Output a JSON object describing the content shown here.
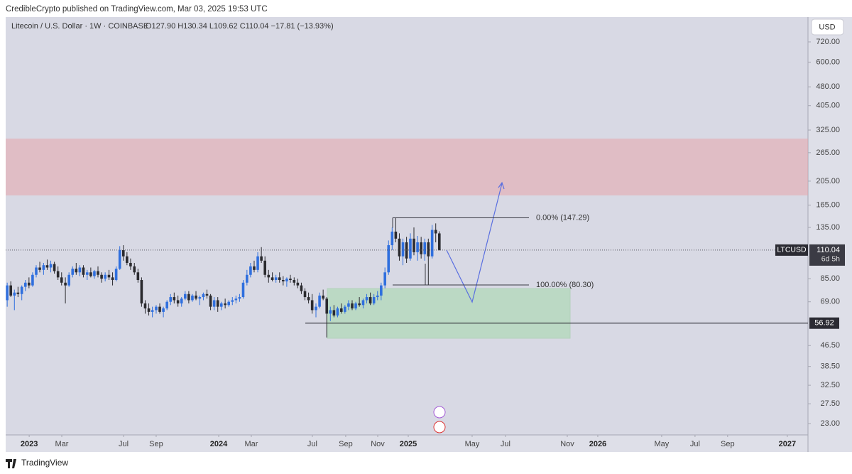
{
  "header": "CredibleCrypto published on TradingView.com, Mar 03, 2025 19:53 UTC",
  "footer": "TradingView",
  "chart_data": {
    "type": "candlestick",
    "title": "Litecoin / U.S. Dollar · 1W · COINBASE",
    "legend_values": "O127.90 H130.34 L109.62 C110.04 −17.81 (−13.93%)",
    "currency": "USD",
    "symbol": "LTCUSD",
    "countdown": "6d 5h",
    "log_scale": true,
    "up_color": "#2f6fde",
    "down_color": "#2a2a2e",
    "xlim": [
      2022.876,
      2027.109
    ],
    "ylim": [
      20.76,
      901
    ],
    "xticks": [
      2023,
      {
        "value": 2023.172,
        "label": "Mar"
      },
      {
        "value": 2023.498,
        "label": "Jul"
      },
      {
        "value": 2023.67,
        "label": "Sep"
      },
      2024,
      {
        "value": 2024.172,
        "label": "Mar"
      },
      {
        "value": 2024.494,
        "label": "Jul"
      },
      {
        "value": 2024.67,
        "label": "Sep"
      },
      {
        "value": 2024.839,
        "label": "Nov"
      },
      2025,
      {
        "value": 2025.337,
        "label": "May"
      },
      {
        "value": 2025.513,
        "label": "Jul"
      },
      {
        "value": 2025.839,
        "label": "Nov"
      },
      2026,
      {
        "value": 2026.337,
        "label": "May"
      },
      {
        "value": 2026.513,
        "label": "Jul"
      },
      {
        "value": 2026.685,
        "label": "Sep"
      },
      2027
    ],
    "yticks": [
      {
        "value": 720,
        "label": "720.00"
      },
      {
        "value": 600,
        "label": "600.00"
      },
      {
        "value": 480,
        "label": "480.00"
      },
      {
        "value": 405,
        "label": "405.00"
      },
      {
        "value": 325,
        "label": "325.00"
      },
      {
        "value": 265,
        "label": "265.00"
      },
      {
        "value": 205,
        "label": "205.00"
      },
      {
        "value": 165,
        "label": "165.00"
      },
      {
        "value": 135,
        "label": "135.00"
      },
      {
        "value": 85,
        "label": "85.00"
      },
      {
        "value": 69,
        "label": "69.00"
      },
      {
        "value": 46.5,
        "label": "46.50"
      },
      {
        "value": 38.5,
        "label": "38.50"
      },
      {
        "value": 32.5,
        "label": "32.50"
      },
      {
        "value": 27.5,
        "label": "27.50"
      },
      {
        "value": 23,
        "label": "23.00"
      }
    ],
    "fib_levels": [
      {
        "value": 147.29,
        "label": "0.00% (147.29)"
      },
      {
        "value": 80.3,
        "label": "100.00% (80.30)"
      }
    ],
    "hline": 56.92,
    "x": [
      2022.884,
      2022.903,
      2022.922,
      2022.941,
      2022.961,
      2022.98,
      2022.999,
      2023.018,
      2023.037,
      2023.056,
      2023.076,
      2023.095,
      2023.114,
      2023.133,
      2023.152,
      2023.171,
      2023.191,
      2023.21,
      2023.229,
      2023.248,
      2023.267,
      2023.286,
      2023.306,
      2023.325,
      2023.344,
      2023.363,
      2023.382,
      2023.401,
      2023.421,
      2023.44,
      2023.459,
      2023.478,
      2023.497,
      2023.516,
      2023.535,
      2023.555,
      2023.574,
      2023.593,
      2023.612,
      2023.631,
      2023.65,
      2023.67,
      2023.689,
      2023.708,
      2023.727,
      2023.746,
      2023.765,
      2023.785,
      2023.804,
      2023.823,
      2023.842,
      2023.861,
      2023.88,
      2023.9,
      2023.919,
      2023.938,
      2023.957,
      2023.976,
      2023.995,
      2024.014,
      2024.034,
      2024.053,
      2024.072,
      2024.091,
      2024.11,
      2024.129,
      2024.149,
      2024.168,
      2024.187,
      2024.206,
      2024.225,
      2024.244,
      2024.263,
      2024.283,
      2024.302,
      2024.321,
      2024.34,
      2024.359,
      2024.378,
      2024.398,
      2024.417,
      2024.436,
      2024.455,
      2024.474,
      2024.493,
      2024.513,
      2024.532,
      2024.551,
      2024.57,
      2024.589,
      2024.608,
      2024.627,
      2024.647,
      2024.666,
      2024.685,
      2024.704,
      2024.723,
      2024.742,
      2024.762,
      2024.781,
      2024.8,
      2024.819,
      2024.838,
      2024.857,
      2024.877,
      2024.896,
      2024.915,
      2024.934,
      2024.953,
      2024.972,
      2024.991,
      2025.011,
      2025.03,
      2025.049,
      2025.068,
      2025.087,
      2025.106,
      2025.126,
      2025.145,
      2025.164
    ],
    "open": [
      70,
      80,
      73,
      75,
      74,
      79,
      82,
      80,
      88,
      94,
      92,
      96,
      94,
      97,
      91,
      86,
      82,
      80,
      88,
      93,
      90,
      94,
      88,
      90,
      87,
      91,
      88,
      85,
      88,
      86,
      84,
      93,
      110,
      104,
      98,
      95,
      90,
      84,
      68,
      65,
      63,
      64,
      66,
      63,
      65,
      69,
      72,
      70,
      68,
      71,
      74,
      70,
      73,
      71,
      72,
      74,
      73,
      66,
      70,
      66,
      68,
      67,
      69,
      70,
      71,
      72,
      82,
      88,
      95,
      92,
      104,
      100,
      88,
      86,
      84,
      86,
      84,
      83,
      85,
      84,
      82,
      80,
      76,
      72,
      70,
      64,
      66,
      73,
      71,
      62,
      64,
      61,
      65,
      63,
      66,
      68,
      65,
      68,
      67,
      70,
      72,
      68,
      72,
      73,
      80,
      90,
      115,
      130,
      122,
      104,
      118,
      102,
      122,
      108,
      118,
      106,
      118,
      104,
      132,
      127.9
    ],
    "high": [
      82,
      83,
      77,
      79,
      80,
      84,
      86,
      90,
      96,
      99,
      98,
      101,
      100,
      99,
      95,
      90,
      86,
      90,
      95,
      98,
      96,
      96,
      92,
      94,
      92,
      95,
      90,
      90,
      92,
      90,
      95,
      114,
      115,
      108,
      102,
      98,
      93,
      86,
      70,
      68,
      66,
      67,
      68,
      66,
      70,
      74,
      75,
      73,
      72,
      76,
      76,
      74,
      76,
      73,
      75,
      77,
      74,
      72,
      72,
      69,
      71,
      70,
      72,
      73,
      74,
      84,
      92,
      98,
      100,
      108,
      113,
      104,
      92,
      90,
      88,
      90,
      87,
      86,
      88,
      86,
      85,
      82,
      78,
      75,
      74,
      68,
      75,
      77,
      72,
      66,
      67,
      66,
      68,
      67,
      70,
      70,
      69,
      72,
      71,
      74,
      75,
      74,
      76,
      82,
      94,
      120,
      135,
      147.29,
      128,
      122,
      124,
      128,
      135,
      125,
      124,
      122,
      122,
      138,
      140,
      130.34
    ],
    "low": [
      66,
      72,
      64,
      72,
      70,
      76,
      78,
      79,
      86,
      90,
      88,
      92,
      90,
      89,
      84,
      80,
      68,
      79,
      86,
      88,
      87,
      86,
      84,
      86,
      85,
      86,
      82,
      83,
      84,
      80,
      83,
      92,
      100,
      96,
      92,
      88,
      82,
      66,
      62,
      61,
      60,
      62,
      62,
      60,
      64,
      67,
      68,
      66,
      66,
      70,
      68,
      69,
      70,
      67,
      70,
      71,
      64,
      64,
      63,
      64,
      65,
      66,
      67,
      68,
      69,
      71,
      80,
      86,
      90,
      90,
      98,
      86,
      82,
      83,
      82,
      82,
      80,
      79,
      82,
      80,
      78,
      74,
      70,
      68,
      62,
      60,
      65,
      70,
      50,
      58,
      60,
      60,
      62,
      62,
      64,
      64,
      64,
      66,
      65,
      68,
      67,
      67,
      70,
      70,
      78,
      88,
      110,
      118,
      100,
      96,
      98,
      100,
      105,
      100,
      102,
      100,
      80.3,
      102,
      118,
      109.62
    ],
    "close": [
      80,
      73,
      75,
      74,
      79,
      82,
      80,
      88,
      94,
      92,
      96,
      94,
      97,
      91,
      86,
      82,
      80,
      88,
      93,
      90,
      94,
      88,
      90,
      87,
      91,
      88,
      85,
      88,
      86,
      84,
      93,
      110,
      104,
      98,
      95,
      90,
      84,
      68,
      65,
      63,
      64,
      66,
      63,
      65,
      69,
      72,
      70,
      68,
      71,
      74,
      70,
      73,
      71,
      72,
      74,
      73,
      66,
      70,
      66,
      68,
      67,
      69,
      70,
      71,
      72,
      82,
      88,
      95,
      92,
      104,
      100,
      88,
      86,
      84,
      86,
      84,
      83,
      85,
      84,
      82,
      80,
      76,
      72,
      70,
      64,
      66,
      73,
      71,
      62,
      64,
      61,
      65,
      63,
      66,
      68,
      65,
      68,
      67,
      70,
      72,
      68,
      72,
      73,
      80,
      90,
      115,
      130,
      122,
      104,
      118,
      102,
      122,
      108,
      118,
      106,
      118,
      104,
      132,
      127.9,
      110.04
    ]
  }
}
